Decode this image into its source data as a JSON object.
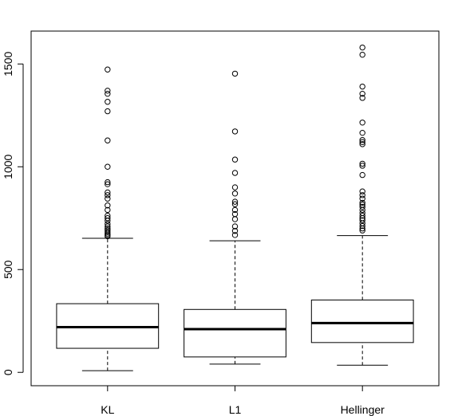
{
  "chart_data": {
    "type": "boxplot",
    "title": "",
    "xlabel": "",
    "ylabel": "",
    "ylim": [
      -65,
      1660
    ],
    "yticks": [
      0,
      500,
      1000,
      1500
    ],
    "grid": false,
    "legend": "none",
    "categories": [
      "KL",
      "L1",
      "Hellinger"
    ],
    "boxes": [
      {
        "category": "KL",
        "whisker_low": 8,
        "q1": 117,
        "median": 220,
        "q3": 334,
        "whisker_high": 652,
        "outliers": [
          662,
          668,
          675,
          683,
          692,
          700,
          710,
          722,
          738,
          750,
          762,
          790,
          812,
          845,
          862,
          875,
          915,
          925,
          1000,
          1128,
          1270,
          1316,
          1355,
          1370,
          1473
        ]
      },
      {
        "category": "L1",
        "whisker_low": 40,
        "q1": 75,
        "median": 210,
        "q3": 306,
        "whisker_high": 640,
        "outliers": [
          668,
          688,
          710,
          745,
          770,
          790,
          818,
          830,
          870,
          900,
          970,
          1035,
          1172,
          1453
        ]
      },
      {
        "category": "Hellinger",
        "whisker_low": 35,
        "q1": 145,
        "median": 240,
        "q3": 352,
        "whisker_high": 665,
        "outliers": [
          690,
          700,
          712,
          725,
          740,
          750,
          762,
          775,
          790,
          805,
          815,
          825,
          845,
          862,
          880,
          960,
          1005,
          1015,
          1110,
          1120,
          1130,
          1165,
          1215,
          1335,
          1355,
          1390,
          1545,
          1580
        ]
      }
    ]
  }
}
